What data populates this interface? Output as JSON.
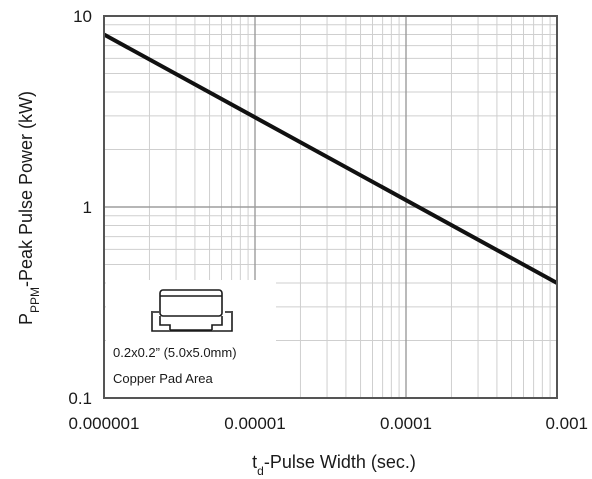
{
  "chart_data": {
    "type": "line",
    "x_scale": "log",
    "y_scale": "log",
    "xlim": [
      1e-06,
      0.001
    ],
    "ylim": [
      0.1,
      10
    ],
    "x_ticks": [
      "0.000001",
      "0.00001",
      "0.0001",
      "0.001"
    ],
    "y_ticks": [
      "10",
      "1",
      "0.1"
    ],
    "xlabel": {
      "sub_pre": "t",
      "sub": "d",
      "rest": "-Pulse Width (sec.)"
    },
    "ylabel": {
      "main": "P",
      "sub": "PPM",
      "rest": "-Peak Pulse Power (kW)"
    },
    "grid": true,
    "series": [
      {
        "x": [
          1e-06,
          0.001
        ],
        "y": [
          8.0,
          0.4
        ]
      }
    ],
    "inset": {
      "line1": "0.2x0.2” (5.0x5.0mm)",
      "line2": "Copper Pad Area"
    }
  }
}
